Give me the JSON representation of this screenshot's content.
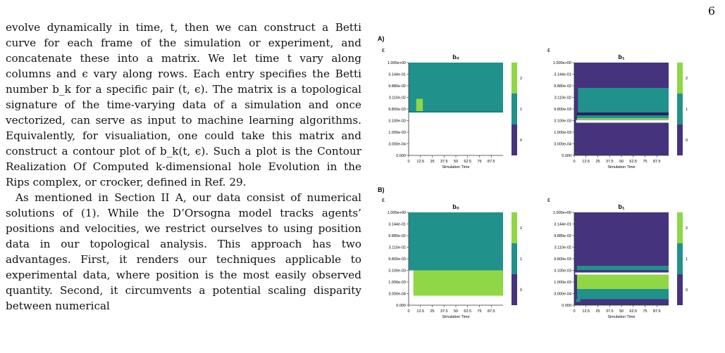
{
  "page_number": "6",
  "paragraphs": [
    "evolve dynamically in time, t, then we can construct a Betti curve for each frame of the simulation or experiment, and concatenate these into a matrix. We let time t vary along columns and ϵ vary along rows. Each entry specifies the Betti number b_k for a specific pair (t, ϵ). The matrix is a topological signature of the time-varying data of a simulation and once vectorized, can serve as input to machine learning algorithms. Equivalently, for visualiation, one could take this matrix and construct a contour plot of b_k(t, ϵ). Such a plot is the Contour Realization Of Computed k-dimensional hole Evolution in the Rips complex, or crocker, defined in Ref. 29.",
    "As mentioned in Section II A, our data consist of numerical solutions of (1). While the D’Orsogna model tracks agents’ positions and velocities, we restrict ourselves to using position data in our topological analysis. This approach has two advantages. First, it renders our techniques applicable to experimental data, where position is the most easily observed quantity. Second, it circumvents a potential scaling disparity between numerical"
  ],
  "colors": {
    "b0_val0": "#ffffff",
    "b1_val0": "#46337e",
    "val1": "#21918c",
    "val2": "#8fd744",
    "teal_dark": "#1b7f7b",
    "purple_dark": "#2c1f5e"
  },
  "figure": {
    "row_labels": [
      "A)",
      "B)"
    ],
    "y_axis_symbol": "ε",
    "x_axis_label": "Simulation Time",
    "y_ticks": [
      "1.000e+00",
      "3.144e-01",
      "9.880e-02",
      "3.110e-02",
      "9.800e-03",
      "3.100e-03",
      "1.000e-03",
      "3.000e-04",
      "0.000"
    ],
    "x_ticks": [
      "0",
      "12.5",
      "25",
      "37.5",
      "50",
      "62.5",
      "75",
      "87.5"
    ],
    "colorbar_ticks": [
      "2",
      "1",
      "0"
    ]
  },
  "chart_data": [
    {
      "type": "heatmap",
      "panel": "A",
      "title": "b₀",
      "xlabel": "Simulation Time",
      "ylabel": "ε",
      "xlim": [
        0,
        100
      ],
      "colorbar": [
        0,
        2
      ],
      "regions": [
        {
          "value": 1,
          "eps_range": [
            "9.800e-03",
            "1.000e+00"
          ]
        },
        {
          "value": 2,
          "t_range": [
            8,
            14
          ],
          "eps_range": [
            "9.800e-03",
            "3.110e-02"
          ]
        },
        {
          "value": 0,
          "eps_range": [
            "0.000",
            "9.800e-03"
          ]
        }
      ]
    },
    {
      "type": "heatmap",
      "panel": "A",
      "title": "b₁",
      "xlabel": "Simulation Time",
      "ylabel": "ε",
      "xlim": [
        0,
        100
      ],
      "colorbar": [
        0,
        2
      ],
      "regions": [
        {
          "value": 0,
          "eps_range": [
            "9.880e-02",
            "1.000e+00"
          ]
        },
        {
          "value": 1,
          "eps_range": [
            "9.800e-03",
            "9.880e-02"
          ]
        },
        {
          "value": 0,
          "eps_range": [
            "0.000",
            "3.100e-03"
          ]
        }
      ]
    },
    {
      "type": "heatmap",
      "panel": "B",
      "title": "b₀",
      "xlabel": "Simulation Time",
      "ylabel": "ε",
      "xlim": [
        0,
        100
      ],
      "colorbar": [
        0,
        2
      ],
      "regions": [
        {
          "value": 1,
          "eps_range": [
            "3.100e-03",
            "1.000e+00"
          ]
        },
        {
          "value": 2,
          "t_range": [
            5,
            100
          ],
          "eps_range": [
            "3.000e-04",
            "3.100e-03"
          ]
        },
        {
          "value": 0,
          "eps_range": [
            "0.000",
            "3.000e-04"
          ]
        }
      ]
    },
    {
      "type": "heatmap",
      "panel": "B",
      "title": "b₁",
      "xlabel": "Simulation Time",
      "ylabel": "ε",
      "xlim": [
        0,
        100
      ],
      "colorbar": [
        0,
        2
      ],
      "regions": [
        {
          "value": 0,
          "eps_range": [
            "3.100e-03",
            "1.000e+00"
          ]
        },
        {
          "value": 2,
          "eps_range": [
            "1.000e-03",
            "3.100e-03"
          ]
        },
        {
          "value": 1,
          "eps_range": [
            "3.000e-04",
            "1.000e-03"
          ]
        },
        {
          "value": 0,
          "eps_range": [
            "0.000",
            "3.000e-04"
          ]
        }
      ]
    }
  ]
}
